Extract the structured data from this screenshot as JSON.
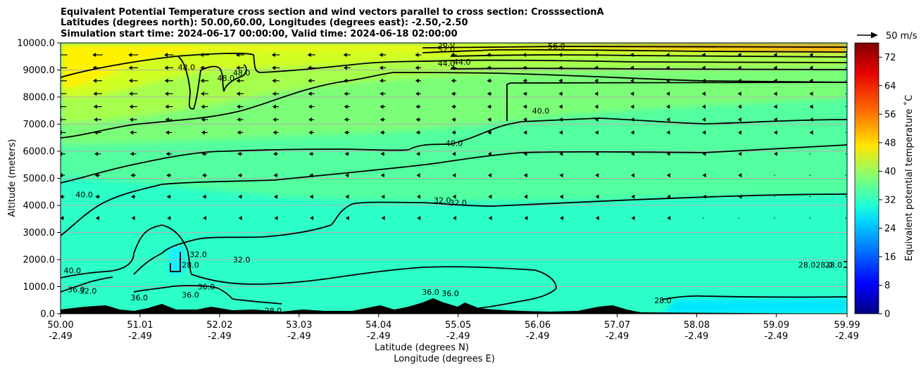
{
  "chart_data": {
    "type": "contour",
    "title_lines": [
      "Equivalent Potential Temperature cross section and wind vectors parallel to cross section: CrosssectionA",
      "Latitudes (degrees north): 50.00,60.00, Longitudes (degrees east): -2.50,-2.50",
      "Simulation start time: 2024-06-17 00:00:00, Valid time: 2024-06-18 02:00:00"
    ],
    "ylabel": "Altitude (meters)",
    "xlabel_lines": [
      "Latitude (degrees N)",
      "Longitude (degrees E)"
    ],
    "ylim": [
      0,
      10000
    ],
    "xlim": [
      50.0,
      59.99
    ],
    "y_ticks": [
      "0.0",
      "1000.0",
      "2000.0",
      "3000.0",
      "4000.0",
      "5000.0",
      "6000.0",
      "7000.0",
      "8000.0",
      "9000.0",
      "10000.0"
    ],
    "x_ticks": [
      {
        "lat": "50.00",
        "lon": "-2.49"
      },
      {
        "lat": "51.01",
        "lon": "-2.49"
      },
      {
        "lat": "52.02",
        "lon": "-2.49"
      },
      {
        "lat": "53.03",
        "lon": "-2.49"
      },
      {
        "lat": "54.04",
        "lon": "-2.49"
      },
      {
        "lat": "55.05",
        "lon": "-2.49"
      },
      {
        "lat": "56.06",
        "lon": "-2.49"
      },
      {
        "lat": "57.07",
        "lon": "-2.49"
      },
      {
        "lat": "58.08",
        "lon": "-2.49"
      },
      {
        "lat": "59.09",
        "lon": "-2.49"
      },
      {
        "lat": "59.99",
        "lon": "-2.49"
      }
    ],
    "grid": "horizontal",
    "colorbar": {
      "label": "Equivalent potential temperature ˚C",
      "range": [
        0,
        76
      ],
      "ticks": [
        "0",
        "8",
        "16",
        "24",
        "32",
        "40",
        "48",
        "56",
        "64",
        "72"
      ]
    },
    "quiver_key": "50 m/s",
    "contour_levels": [
      28,
      32,
      36,
      40,
      44,
      48,
      52,
      56
    ],
    "contour_labels": [
      {
        "text": "56.0",
        "lat": 56.3,
        "alt": 9880
      },
      {
        "text": "56.0",
        "lat": 54.9,
        "alt": 9960
      },
      {
        "text": "52.0",
        "lat": 54.9,
        "alt": 9750
      },
      {
        "text": "44.0",
        "lat": 54.9,
        "alt": 9250
      },
      {
        "text": "44.0",
        "lat": 55.1,
        "alt": 9300
      },
      {
        "text": "48.0",
        "lat": 51.6,
        "alt": 9100
      },
      {
        "text": "48.0",
        "lat": 52.1,
        "alt": 8700
      },
      {
        "text": "48.0",
        "lat": 52.3,
        "alt": 8900
      },
      {
        "text": "40.0",
        "lat": 56.1,
        "alt": 7500
      },
      {
        "text": "40.0",
        "lat": 55.0,
        "alt": 6300
      },
      {
        "text": "40.0",
        "lat": 50.3,
        "alt": 4400
      },
      {
        "text": "40.0",
        "lat": 50.15,
        "alt": 1600
      },
      {
        "text": "32.0",
        "lat": 54.85,
        "alt": 4200
      },
      {
        "text": "32.0",
        "lat": 55.05,
        "alt": 4100
      },
      {
        "text": "32.0",
        "lat": 51.75,
        "alt": 2200
      },
      {
        "text": "32.0",
        "lat": 52.3,
        "alt": 2000
      },
      {
        "text": "28.0",
        "lat": 51.65,
        "alt": 1800
      },
      {
        "text": "28.0",
        "lat": 59.48,
        "alt": 1800
      },
      {
        "text": "28.0",
        "lat": 59.7,
        "alt": 1800
      },
      {
        "text": "28.0",
        "lat": 59.82,
        "alt": 1800
      },
      {
        "text": "28.0",
        "lat": 57.65,
        "alt": 500
      },
      {
        "text": "28.0",
        "lat": 52.7,
        "alt": 120
      },
      {
        "text": "36.0",
        "lat": 51.0,
        "alt": 600
      },
      {
        "text": "36.0",
        "lat": 51.65,
        "alt": 700
      },
      {
        "text": "36.0",
        "lat": 51.85,
        "alt": 1000
      },
      {
        "text": "36.0",
        "lat": 54.7,
        "alt": 800
      },
      {
        "text": "36.0",
        "lat": 54.95,
        "alt": 750
      },
      {
        "text": "32.0",
        "lat": 50.35,
        "alt": 850
      },
      {
        "text": "36.0",
        "lat": 50.2,
        "alt": 900
      }
    ]
  }
}
